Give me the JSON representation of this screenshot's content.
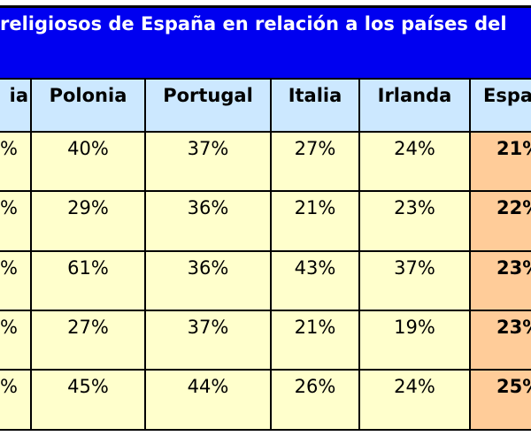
{
  "title": "religiosos de España en relación a los países del",
  "table": {
    "header": [
      "ia",
      "Polonia",
      "Portugal",
      "Italia",
      "Irlanda",
      "Espa"
    ],
    "rows": [
      [
        "%",
        "40%",
        "37%",
        "27%",
        "24%",
        "21%"
      ],
      [
        "%",
        "29%",
        "36%",
        "21%",
        "23%",
        "22%"
      ],
      [
        "%",
        "61%",
        "36%",
        "43%",
        "37%",
        "23%"
      ],
      [
        "%",
        "27%",
        "37%",
        "21%",
        "19%",
        "23%"
      ],
      [
        "%",
        "45%",
        "44%",
        "26%",
        "24%",
        "25%"
      ]
    ]
  }
}
